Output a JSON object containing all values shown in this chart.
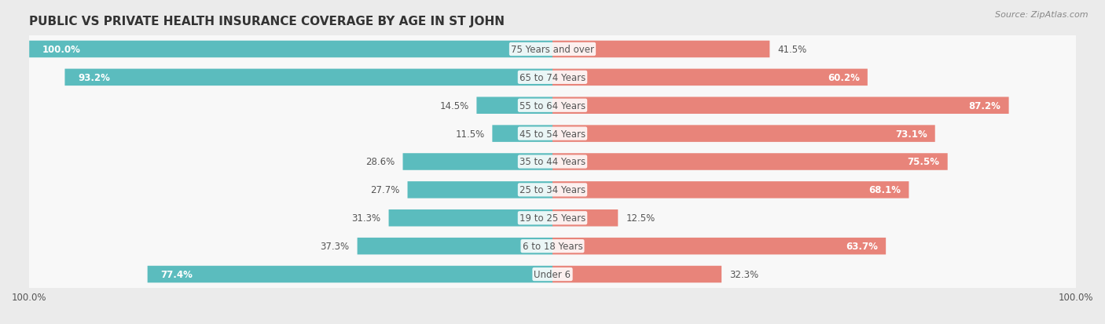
{
  "title": "PUBLIC VS PRIVATE HEALTH INSURANCE COVERAGE BY AGE IN ST JOHN",
  "source": "Source: ZipAtlas.com",
  "categories": [
    "Under 6",
    "6 to 18 Years",
    "19 to 25 Years",
    "25 to 34 Years",
    "35 to 44 Years",
    "45 to 54 Years",
    "55 to 64 Years",
    "65 to 74 Years",
    "75 Years and over"
  ],
  "public": [
    77.4,
    37.3,
    31.3,
    27.7,
    28.6,
    11.5,
    14.5,
    93.2,
    100.0
  ],
  "private": [
    32.3,
    63.7,
    12.5,
    68.1,
    75.5,
    73.1,
    87.2,
    60.2,
    41.5
  ],
  "public_color": "#5bbcbe",
  "private_color": "#e8847a",
  "background_color": "#ebebeb",
  "row_bg_color": "#f8f8f8",
  "max_val": 100.0,
  "title_fontsize": 11,
  "label_fontsize": 8.5,
  "source_fontsize": 8,
  "legend_fontsize": 9,
  "cat_label_color": "#555555",
  "value_inside_color": "white",
  "value_outside_color": "#555555"
}
